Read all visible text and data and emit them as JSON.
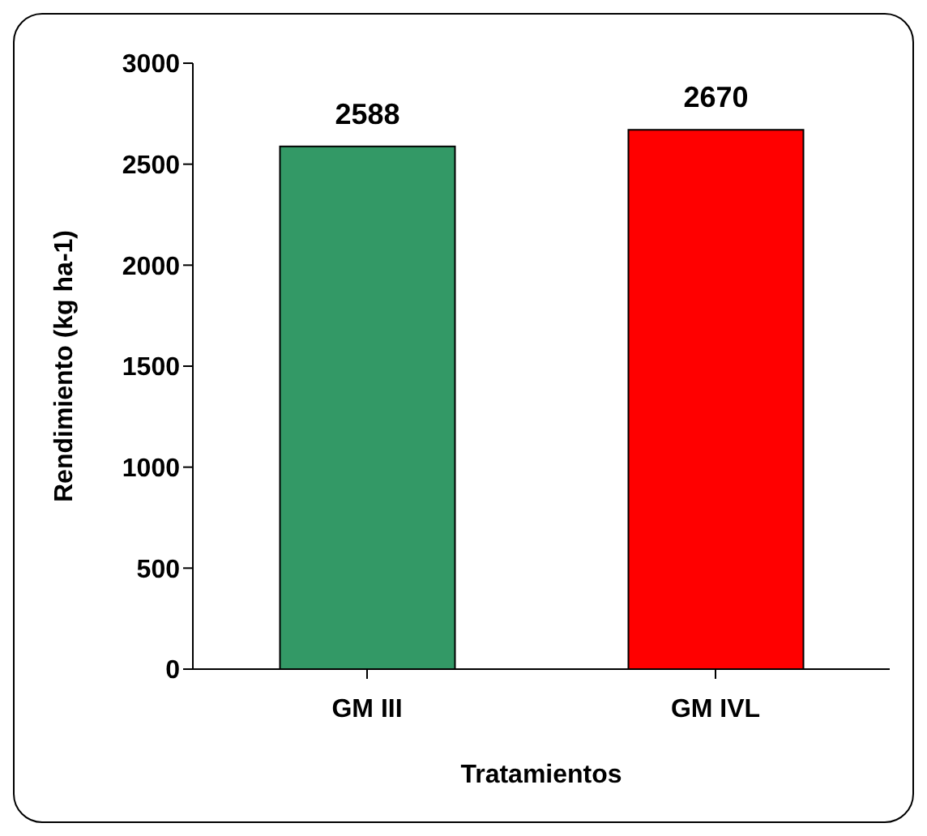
{
  "chart_data": {
    "type": "bar",
    "categories": [
      "GM III",
      "GM IVL"
    ],
    "values": [
      2588,
      2670
    ],
    "colors": [
      "#339966",
      "#ff0000"
    ],
    "ylim": [
      0,
      3000
    ],
    "yticks": [
      0,
      500,
      1000,
      1500,
      2000,
      2500,
      3000
    ],
    "ylabel": "Rendimiento (kg ha-1)",
    "xlabel": "Tratamientos",
    "data_labels": true,
    "grid": false,
    "legend": false
  }
}
